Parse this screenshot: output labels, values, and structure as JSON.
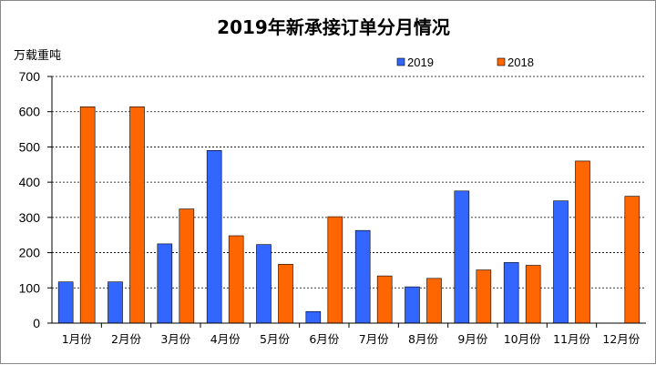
{
  "chart_data": {
    "type": "bar",
    "title": "2019年新承接订单分月情况",
    "ylabel": "万载重吨",
    "xlabel": "",
    "categories": [
      "1月份",
      "2月份",
      "3月份",
      "4月份",
      "5月份",
      "6月份",
      "7月份",
      "8月份",
      "9月份",
      "10月份",
      "11月份",
      "12月份"
    ],
    "series": [
      {
        "name": "2019",
        "color": "#3366ff",
        "values": [
          117,
          117,
          225,
          490,
          223,
          33,
          263,
          103,
          375,
          172,
          347,
          null
        ]
      },
      {
        "name": "2018",
        "color": "#ff6600",
        "values": [
          614,
          614,
          324,
          248,
          167,
          302,
          134,
          127,
          151,
          164,
          460,
          360
        ]
      }
    ],
    "ylim": [
      0,
      700
    ],
    "yticks": [
      0,
      100,
      200,
      300,
      400,
      500,
      600,
      700
    ],
    "grid": "horizontal dashed",
    "legend": "top-right"
  }
}
